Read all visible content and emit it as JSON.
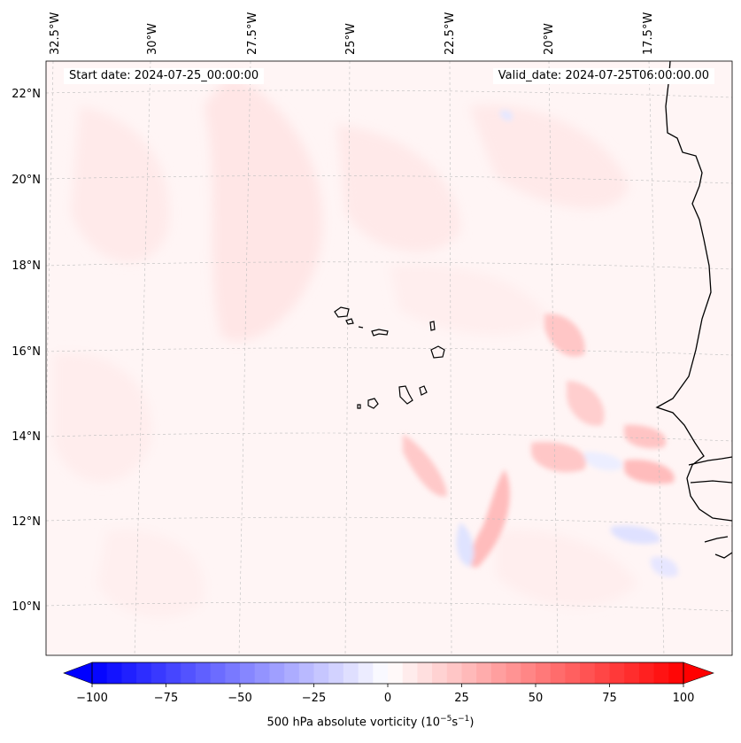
{
  "map": {
    "start_label": "Start date: 2024-07-25_00:00:00",
    "valid_label": "Valid_date: 2024-07-25T06:00:00.00",
    "lon_labels": [
      "32.5°W",
      "30°W",
      "27.5°W",
      "25°W",
      "22.5°W",
      "20°W",
      "17.5°W"
    ],
    "lat_labels": [
      "22°N",
      "20°N",
      "18°N",
      "16°N",
      "14°N",
      "12°N",
      "10°N"
    ],
    "background_color": "#fff5f5",
    "coastline_color": "#000000",
    "gridlines": true
  },
  "colorbar": {
    "label_prefix": "500 hPa absolute vorticity (10",
    "label_exp1": "−5",
    "label_mid": "s",
    "label_exp2": "−1",
    "label_suffix": ")",
    "ticks": [
      "−100",
      "−75",
      "−50",
      "−25",
      "0",
      "25",
      "50",
      "75",
      "100"
    ],
    "min": -100,
    "max": 100,
    "step": 5,
    "low_color": "#0000ff",
    "mid_color": "#ffffff",
    "high_color": "#ff0000"
  }
}
